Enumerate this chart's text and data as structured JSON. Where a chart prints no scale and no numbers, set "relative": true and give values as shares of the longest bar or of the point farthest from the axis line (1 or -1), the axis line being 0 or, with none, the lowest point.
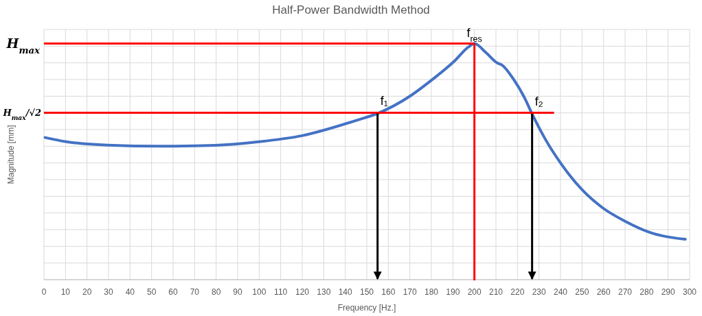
{
  "chart_data": {
    "type": "line",
    "title": "Half-Power Bandwidth Method",
    "xlabel": "Frequency [Hz.]",
    "ylabel": "Magnitude [mm]",
    "relative": true,
    "xlim": [
      0,
      300
    ],
    "xticks": [
      0,
      10,
      20,
      30,
      40,
      50,
      60,
      70,
      80,
      90,
      100,
      110,
      120,
      130,
      140,
      150,
      160,
      170,
      180,
      190,
      200,
      210,
      220,
      230,
      240,
      250,
      260,
      270,
      280,
      290,
      300
    ],
    "grid": true,
    "marker": "none",
    "line_style": "solid",
    "series": [
      {
        "color": "#4472c4",
        "x": [
          0.5,
          10.4,
          29.6,
          54,
          79.6,
          99.9,
          120,
          145.7,
          155.3,
          170.2,
          180.8,
          190.4,
          197.3,
          200,
          205.3,
          210.6,
          212.8,
          218.1,
          223.4,
          226.8,
          233,
          240.5,
          250,
          259.6,
          270.3,
          280.9,
          298
        ],
        "values": [
          0.602,
          0.584,
          0.57,
          0.565,
          0.569,
          0.584,
          0.61,
          0.676,
          0.705,
          0.778,
          0.85,
          0.923,
          0.986,
          1,
          0.962,
          0.918,
          0.909,
          0.85,
          0.768,
          0.702,
          0.594,
          0.488,
          0.381,
          0.304,
          0.246,
          0.202,
          0.171
        ]
      }
    ],
    "ref_lines": [
      {
        "axis": "y",
        "value": 1,
        "label": "H$_{max}$",
        "color": "#ff0000"
      },
      {
        "axis": "y",
        "value": 0.707,
        "label": "H$_{max}$/√2",
        "color": "#ff0000"
      },
      {
        "axis": "x",
        "value": 200,
        "label": "f$_{res}$",
        "color": "#ff0000"
      },
      {
        "axis": "x",
        "value": 155,
        "label": "f₁",
        "color": "#000000"
      },
      {
        "axis": "x",
        "value": 226.8,
        "label": "f₂",
        "color": "#000000"
      }
    ]
  }
}
